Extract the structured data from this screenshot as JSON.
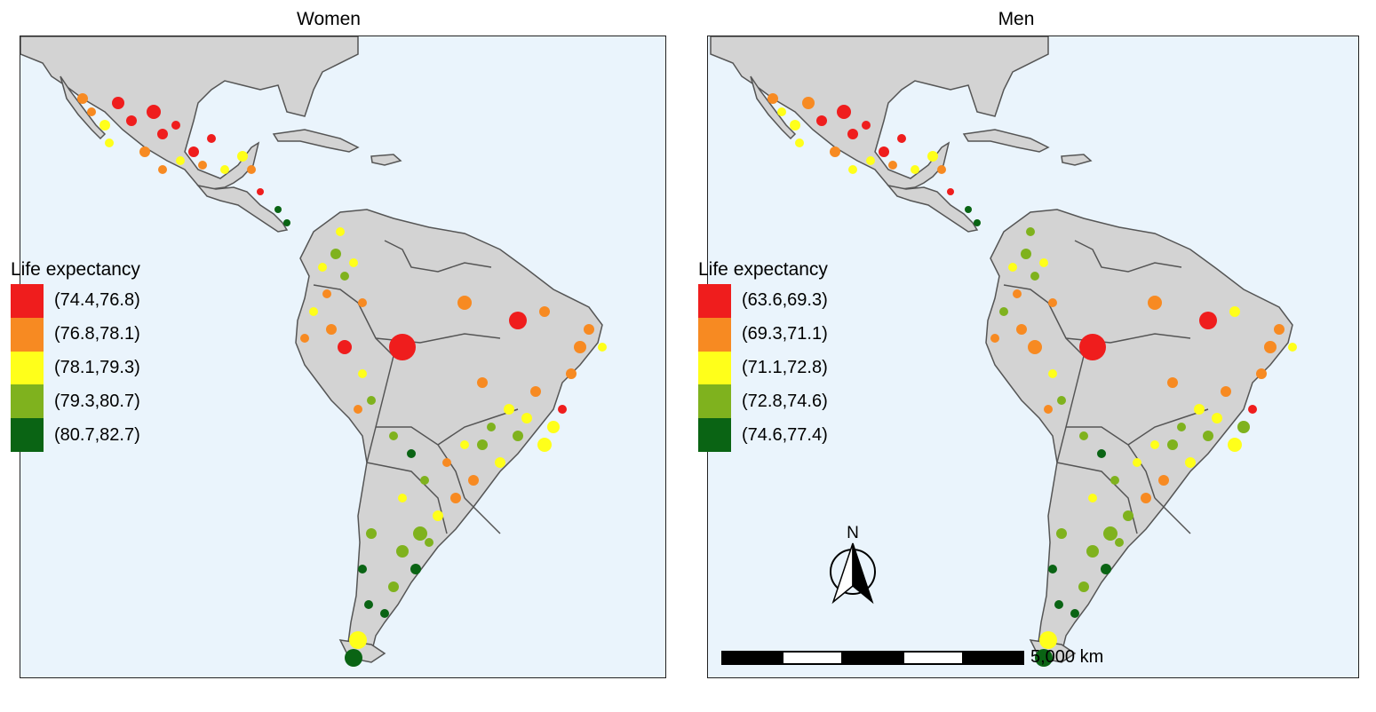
{
  "panels": [
    {
      "title": "Women"
    },
    {
      "title": "Men"
    }
  ],
  "legend_title": "Life expectancy",
  "legend_colors": [
    "#ef1d1d",
    "#f78a22",
    "#ffff1a",
    "#7fb21e",
    "#0a6414"
  ],
  "legends": {
    "women": [
      "(74.4,76.8)",
      "(76.8,78.1)",
      "(78.1,79.3)",
      "(79.3,80.7)",
      "(80.7,82.7)"
    ],
    "men": [
      "(63.6,69.3)",
      "(69.3,71.1)",
      "(71.1,72.8)",
      "(72.8,74.6)",
      "(74.6,77.4)"
    ]
  },
  "north_label": "N",
  "scale_label": "5,000 km",
  "colors": {
    "ocean": "#eaf4fc",
    "land": "#d3d3d3",
    "border": "#555555"
  }
}
